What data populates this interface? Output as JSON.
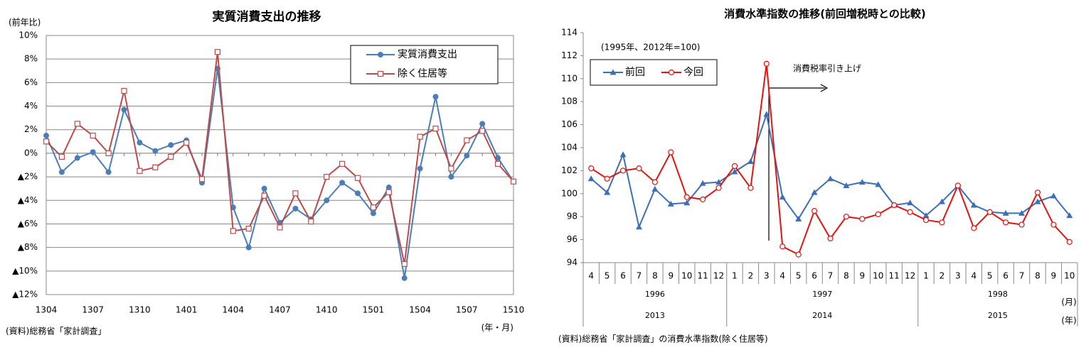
{
  "chart_data": [
    {
      "type": "line",
      "title": "実質消費支出の推移",
      "ylabel": "(前年比)",
      "xlabel": "(年・月)",
      "source": "(資料)総務省「家計調査」",
      "categories": [
        "1304",
        null,
        null,
        "1307",
        null,
        null,
        "1310",
        null,
        null,
        "1401",
        null,
        null,
        "1404",
        null,
        null,
        "1407",
        null,
        null,
        "1410",
        null,
        null,
        "1501",
        null,
        null,
        "1504",
        null,
        null,
        "1507",
        null,
        null,
        "1510"
      ],
      "series": [
        {
          "name": "実質消費支出",
          "color": "#4a7ebb",
          "marker": "circle",
          "values": [
            1.5,
            -1.6,
            -0.4,
            0.1,
            -1.6,
            3.7,
            0.9,
            0.2,
            0.7,
            1.1,
            -2.5,
            7.2,
            -4.6,
            -8.0,
            -3.0,
            -5.9,
            -4.7,
            -5.6,
            -4.0,
            -2.5,
            -3.4,
            -5.1,
            -2.9,
            -10.6,
            -1.3,
            4.8,
            -2.0,
            -0.2,
            2.5,
            -0.4,
            -2.4
          ]
        },
        {
          "name": "除く住居等",
          "color": "#be4b48",
          "marker": "square-open",
          "values": [
            1.0,
            -0.3,
            2.5,
            1.5,
            0.0,
            5.3,
            -1.5,
            -1.2,
            -0.3,
            0.9,
            -2.2,
            8.6,
            -6.6,
            -6.4,
            -3.6,
            -6.3,
            -3.4,
            -5.8,
            -2.0,
            -0.9,
            -2.1,
            -4.6,
            -3.3,
            -9.4,
            1.4,
            2.1,
            -1.3,
            1.1,
            1.9,
            -0.9,
            -2.4
          ]
        }
      ],
      "ylim": [
        -12,
        10
      ],
      "yticks": [
        {
          "value": 10,
          "label": "10%"
        },
        {
          "value": 8,
          "label": "8%"
        },
        {
          "value": 6,
          "label": "6%"
        },
        {
          "value": 4,
          "label": "4%"
        },
        {
          "value": 2,
          "label": "2%"
        },
        {
          "value": 0,
          "label": "0%"
        },
        {
          "value": -2,
          "label": "▲2%"
        },
        {
          "value": -4,
          "label": "▲4%"
        },
        {
          "value": -6,
          "label": "▲6%"
        },
        {
          "value": -8,
          "label": "▲8%"
        },
        {
          "value": -10,
          "label": "▲10%"
        },
        {
          "value": -12,
          "label": "▲12%"
        }
      ],
      "grid": true,
      "legend": "upper right"
    },
    {
      "type": "line",
      "title": "消費水準指数の推移(前回増税時との比較)",
      "subtitle": "(1995年、2012年=100)",
      "annotation": "消費税率引き上げ",
      "source": "(資料)総務省「家計調査」の消費水準指数(除く住居等)",
      "month_label": "(月)",
      "year_label": "(年)",
      "categories": [
        "4",
        "5",
        "6",
        "7",
        "8",
        "9",
        "10",
        "11",
        "12",
        "1",
        "2",
        "3",
        "4",
        "5",
        "6",
        "7",
        "8",
        "9",
        "10",
        "11",
        "12",
        "1",
        "2",
        "3",
        "4",
        "5",
        "6",
        "7",
        "8",
        "9",
        "10"
      ],
      "years_prev": [
        "1996",
        "1997",
        "1998"
      ],
      "years_curr": [
        "2013",
        "2014",
        "2015"
      ],
      "series": [
        {
          "name": "前回",
          "color": "#3b6fb6",
          "marker": "triangle",
          "values": [
            101.3,
            100.1,
            103.4,
            97.1,
            100.4,
            99.1,
            99.2,
            100.9,
            101.0,
            101.9,
            102.8,
            106.9,
            99.7,
            97.8,
            100.1,
            101.3,
            100.7,
            101.0,
            100.8,
            99.0,
            99.2,
            98.1,
            99.3,
            100.7,
            99.0,
            98.4,
            98.3,
            98.3,
            99.3,
            99.8,
            98.1
          ]
        },
        {
          "name": "今回",
          "color": "#e3140f",
          "marker": "circle-open",
          "values": [
            102.2,
            101.3,
            102.0,
            102.2,
            101.0,
            103.6,
            99.7,
            99.5,
            100.5,
            102.4,
            100.5,
            111.3,
            95.4,
            94.7,
            98.5,
            96.1,
            98.0,
            97.8,
            98.2,
            99.0,
            98.4,
            97.7,
            97.5,
            100.7,
            97.0,
            98.4,
            97.5,
            97.3,
            100.1,
            97.3,
            95.8
          ]
        }
      ],
      "ylim": [
        94,
        114
      ],
      "yticks": [
        94,
        96,
        98,
        100,
        102,
        104,
        106,
        108,
        110,
        112,
        114
      ],
      "grid": false,
      "legend": "upper left"
    }
  ]
}
